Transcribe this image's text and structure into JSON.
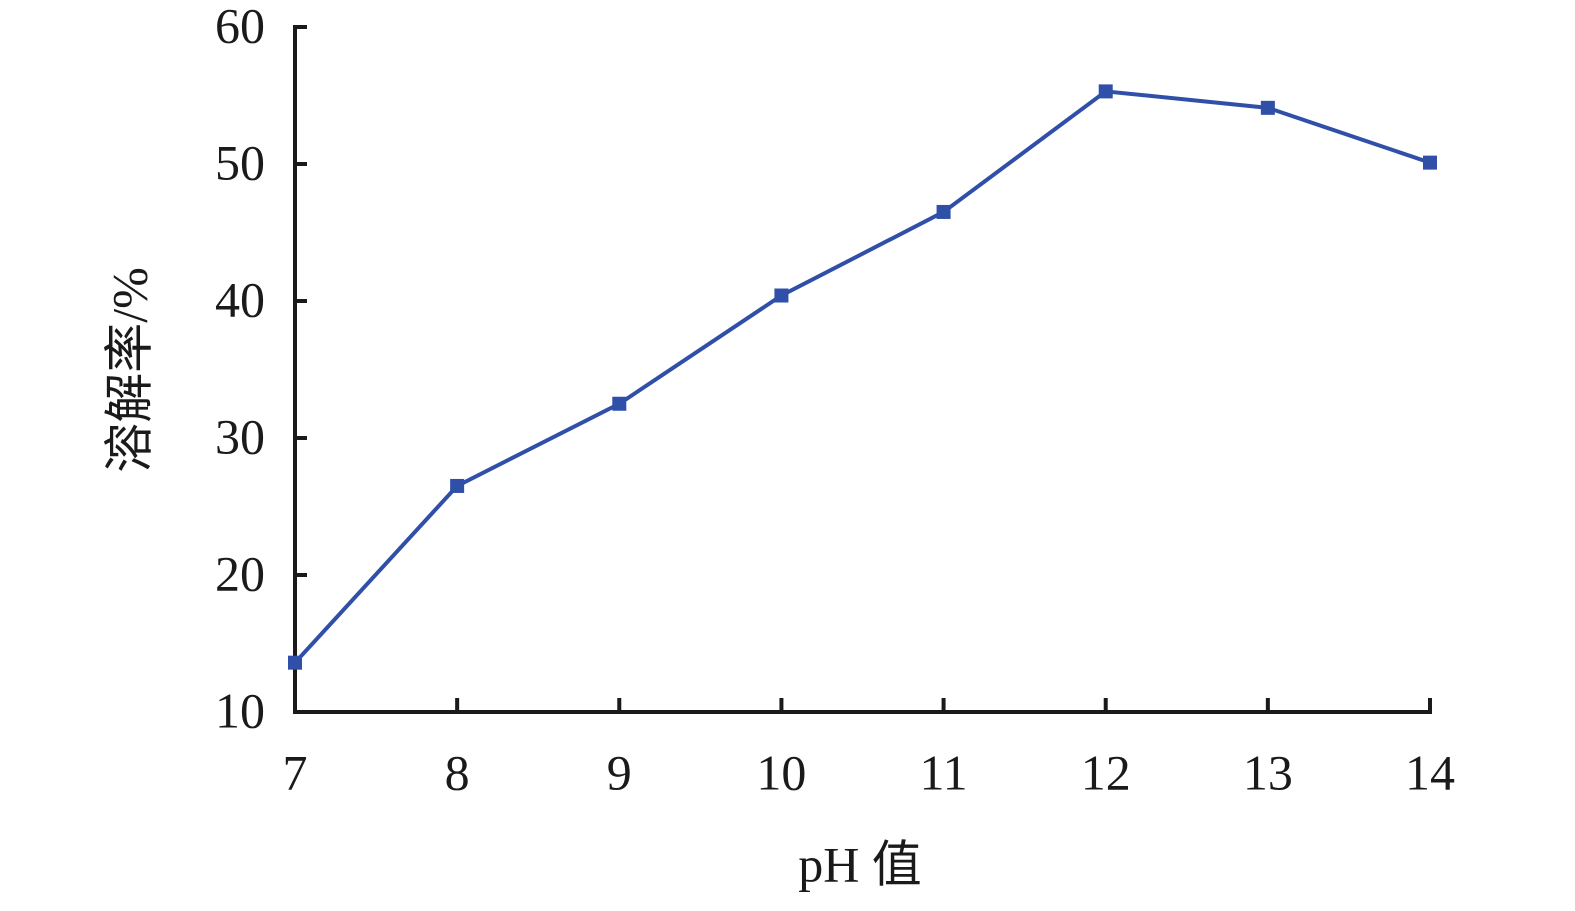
{
  "chart_data": {
    "type": "line",
    "x_label": "pH 值",
    "y_label": "溶解率/%",
    "x": [
      7,
      8,
      9,
      10,
      11,
      12,
      13,
      14
    ],
    "series": [
      {
        "name": "溶解率",
        "color": "#2f4fa8",
        "values": [
          13.6,
          26.5,
          32.5,
          40.4,
          46.5,
          55.3,
          54.1,
          50.1
        ]
      }
    ],
    "xlim": [
      7,
      14
    ],
    "xticks": [
      7,
      8,
      9,
      10,
      11,
      12,
      13,
      14
    ],
    "ylim": [
      10,
      60
    ],
    "yticks": [
      10,
      20,
      30,
      40,
      50,
      60
    ],
    "grid": false,
    "legend": false
  }
}
